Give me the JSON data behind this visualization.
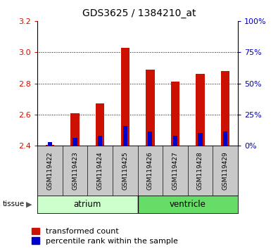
{
  "title": "GDS3625 / 1384210_at",
  "samples": [
    "GSM119422",
    "GSM119423",
    "GSM119424",
    "GSM119425",
    "GSM119426",
    "GSM119427",
    "GSM119428",
    "GSM119429"
  ],
  "red_values": [
    2.405,
    2.61,
    2.67,
    3.03,
    2.89,
    2.81,
    2.86,
    2.88
  ],
  "blue_values": [
    2.422,
    2.448,
    2.462,
    2.528,
    2.492,
    2.462,
    2.483,
    2.492
  ],
  "baseline": 2.4,
  "ylim": [
    2.4,
    3.2
  ],
  "yticks_left": [
    2.4,
    2.6,
    2.8,
    3.0,
    3.2
  ],
  "yticks_right": [
    0,
    25,
    50,
    75,
    100
  ],
  "tissue_groups": [
    {
      "label": "atrium",
      "indices": [
        0,
        1,
        2,
        3
      ],
      "color": "#ccffcc"
    },
    {
      "label": "ventricle",
      "indices": [
        4,
        5,
        6,
        7
      ],
      "color": "#66dd66"
    }
  ],
  "bar_color_red": "#cc1100",
  "bar_color_blue": "#0000cc",
  "bar_width": 0.35,
  "blue_bar_width": 0.18,
  "plot_bg": "#ffffff",
  "tick_bg": "#c8c8c8",
  "left_tick_color": "#cc1100",
  "right_tick_color": "#0000bb",
  "title_fontsize": 10,
  "tick_fontsize": 8,
  "sample_fontsize": 6.5,
  "label_fontsize": 8.5,
  "legend_fontsize": 8
}
